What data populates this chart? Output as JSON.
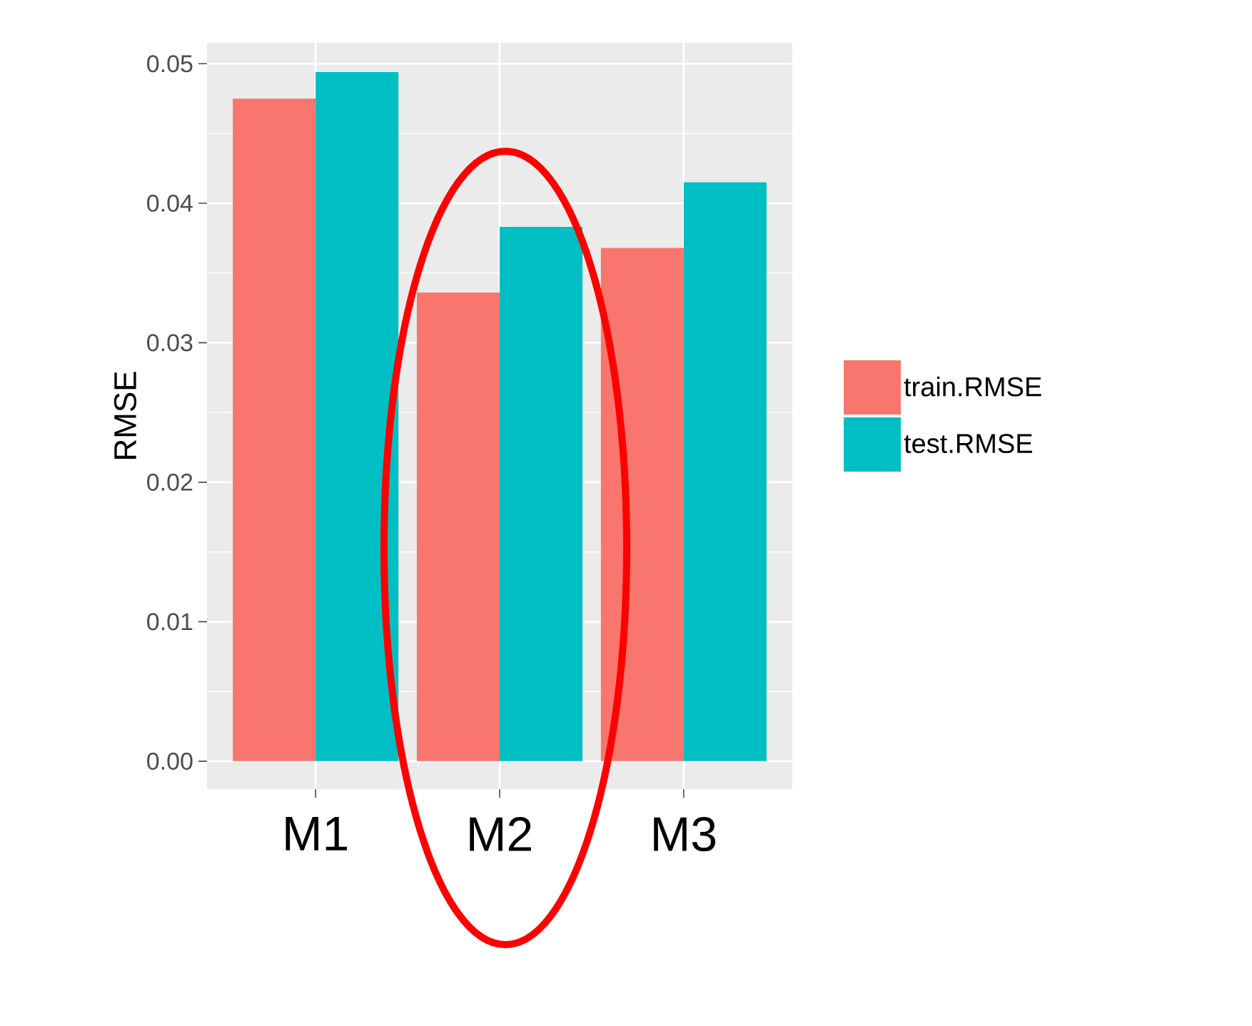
{
  "chart_data": {
    "type": "bar",
    "ylabel": "RMSE",
    "categories": [
      "M1",
      "M2",
      "M3"
    ],
    "series": [
      {
        "name": "train.RMSE",
        "color": "#f8766d",
        "values": [
          0.0475,
          0.0336,
          0.0368
        ]
      },
      {
        "name": "test.RMSE",
        "color": "#00bfc4",
        "values": [
          0.0494,
          0.0383,
          0.0415
        ]
      }
    ],
    "ylim": [
      -0.002,
      0.0515
    ],
    "yticks": [
      {
        "value": 0,
        "label": "0.00"
      },
      {
        "value": 0.01,
        "label": "0.01"
      },
      {
        "value": 0.02,
        "label": "0.02"
      },
      {
        "value": 0.03,
        "label": "0.03"
      },
      {
        "value": 0.04,
        "label": "0.04"
      },
      {
        "value": 0.05,
        "label": "0.05"
      }
    ],
    "grid": true,
    "legend": "right"
  }
}
